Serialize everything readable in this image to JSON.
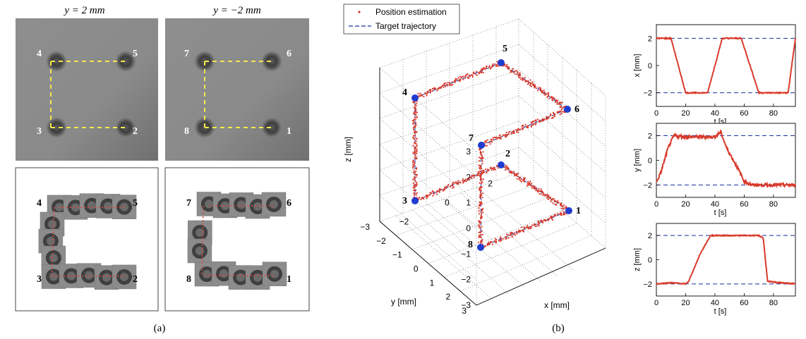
{
  "figure": {
    "panel_a_label": "(a)",
    "panel_b_label": "(b)"
  },
  "panel_a": {
    "top_titles": [
      "y = 2 mm",
      "y = −2 mm"
    ],
    "left_micrograph_markers": [
      {
        "id": "4",
        "corner": "top-left"
      },
      {
        "id": "5",
        "corner": "top-right"
      },
      {
        "id": "3",
        "corner": "bottom-left"
      },
      {
        "id": "2",
        "corner": "bottom-right"
      }
    ],
    "right_micrograph_markers": [
      {
        "id": "7",
        "corner": "top-left"
      },
      {
        "id": "6",
        "corner": "top-right"
      },
      {
        "id": "8",
        "corner": "bottom-left"
      },
      {
        "id": "1",
        "corner": "bottom-right"
      }
    ],
    "colors": {
      "micrograph_bg": "#8a8a8a",
      "path_line": "#f5e94a",
      "dot_path": "#e0463c"
    }
  },
  "chart_data": [
    {
      "type": "scatter",
      "title": "",
      "xlabel": "x [mm]",
      "ylabel": "y [mm]",
      "zlabel": "z [mm]",
      "xlim": [
        -3,
        3
      ],
      "ylim": [
        -3,
        3
      ],
      "zlim": [
        -3,
        3
      ],
      "x_ticks": [
        "−2",
        "0",
        "2"
      ],
      "y_ticks": [
        "3",
        "2",
        "1",
        "0",
        "−1",
        "−2",
        "−3"
      ],
      "z_ticks": [
        "3",
        "2",
        "1",
        "0",
        "−1",
        "−2",
        "−3"
      ],
      "grid": true,
      "legend_placement": "top-left",
      "legend": [
        "Position estimation",
        "Target trajectory"
      ],
      "points": [
        {
          "label": "1",
          "x": 2,
          "y": -2,
          "z": -2
        },
        {
          "label": "2",
          "x": -2,
          "y": -2,
          "z": -2
        },
        {
          "label": "3",
          "x": -2,
          "y": 2,
          "z": -2
        },
        {
          "label": "4",
          "x": -2,
          "y": 2,
          "z": 2
        },
        {
          "label": "5",
          "x": 2,
          "y": 2,
          "z": 2
        },
        {
          "label": "6",
          "x": 2,
          "y": -2,
          "z": 2
        },
        {
          "label": "7",
          "x": -2,
          "y": -2,
          "z": 2
        },
        {
          "label": "8",
          "x": -2,
          "y": -2,
          "z": -2
        }
      ],
      "colors": {
        "estimation": "#d93a2b",
        "target": "#1c2f9e",
        "markers": "#1f3ccf"
      }
    },
    {
      "type": "line",
      "xlabel": "t [s]",
      "ylabel": "x [mm]",
      "xlim": [
        0,
        95
      ],
      "ylim": [
        -3,
        3
      ],
      "x_ticks": [
        "0",
        "20",
        "40",
        "60",
        "80"
      ],
      "y_ticks": [
        "2",
        "0",
        "−2"
      ],
      "reference_levels": [
        2,
        -2
      ],
      "t": [
        0,
        10,
        20,
        25,
        35,
        45,
        58,
        70,
        80,
        90,
        95
      ],
      "values": [
        2,
        2,
        -2,
        -2,
        -2,
        2,
        2,
        -2,
        -2,
        -2,
        2
      ]
    },
    {
      "type": "line",
      "xlabel": "t [s]",
      "ylabel": "y [mm]",
      "xlim": [
        0,
        95
      ],
      "ylim": [
        -3,
        3
      ],
      "x_ticks": [
        "0",
        "20",
        "40",
        "60",
        "80"
      ],
      "y_ticks": [
        "2",
        "0",
        "−2"
      ],
      "reference_levels": [
        2,
        -2
      ],
      "t": [
        0,
        3,
        8,
        12,
        20,
        30,
        40,
        44,
        48,
        55,
        60,
        65,
        70,
        80,
        95
      ],
      "values": [
        -1.8,
        -1,
        1,
        2,
        1.9,
        1.9,
        1.9,
        2.3,
        1,
        -0.5,
        -1.7,
        -2,
        -2,
        -2,
        -2
      ]
    },
    {
      "type": "line",
      "xlabel": "t [s]",
      "ylabel": "z [mm]",
      "xlim": [
        0,
        95
      ],
      "ylim": [
        -3,
        3
      ],
      "x_ticks": [
        "0",
        "20",
        "40",
        "60",
        "80"
      ],
      "y_ticks": [
        "2",
        "0",
        "−2"
      ],
      "reference_levels": [
        2,
        -2
      ],
      "t": [
        0,
        10,
        20,
        22,
        30,
        37,
        50,
        60,
        70,
        73,
        76,
        85,
        95
      ],
      "values": [
        -2,
        -1.9,
        -2,
        -1.8,
        0.5,
        2,
        2,
        2,
        2,
        1.8,
        -1.8,
        -1.9,
        -2
      ]
    }
  ]
}
